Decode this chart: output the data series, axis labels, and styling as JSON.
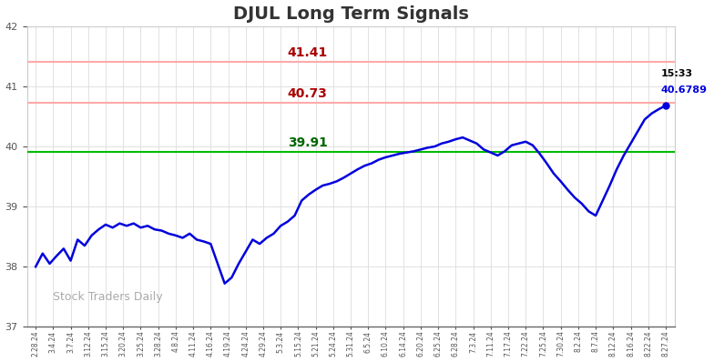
{
  "title": "DJUL Long Term Signals",
  "title_fontsize": 14,
  "title_color": "#333333",
  "background_color": "#ffffff",
  "line_color": "#0000dd",
  "line_width": 1.8,
  "hline_green_value": 39.91,
  "hline_green_color": "#00bb00",
  "hline_red1_value": 40.73,
  "hline_red1_color": "#ffaaaa",
  "hline_red2_value": 41.41,
  "hline_red2_color": "#ffaaaa",
  "label_41_41": "41.41",
  "label_40_73": "40.73",
  "label_39_91": "39.91",
  "label_red_color": "#aa0000",
  "label_green_color": "#006600",
  "annotation_time": "15:33",
  "annotation_price": "40.6789",
  "annotation_time_color": "#000000",
  "annotation_price_color": "#0000dd",
  "watermark": "Stock Traders Daily",
  "watermark_color": "#aaaaaa",
  "ylim_min": 37,
  "ylim_max": 42,
  "yticks": [
    37,
    38,
    39,
    40,
    41,
    42
  ],
  "x_labels": [
    "2.28.24",
    "3.4.24",
    "3.7.24",
    "3.12.24",
    "3.15.24",
    "3.20.24",
    "3.25.24",
    "3.28.24",
    "4.8.24",
    "4.11.24",
    "4.16.24",
    "4.19.24",
    "4.24.24",
    "4.29.24",
    "5.3.24",
    "5.15.24",
    "5.21.24",
    "5.24.24",
    "5.31.24",
    "6.5.24",
    "6.10.24",
    "6.14.24",
    "6.20.24",
    "6.25.24",
    "6.28.24",
    "7.3.24",
    "7.11.24",
    "7.17.24",
    "7.22.24",
    "7.25.24",
    "7.30.24",
    "8.2.24",
    "8.7.24",
    "8.12.24",
    "8.16.24",
    "8.22.24",
    "8.27.24"
  ],
  "prices": [
    38.0,
    38.22,
    38.05,
    38.18,
    38.3,
    38.1,
    38.45,
    38.35,
    38.52,
    38.62,
    38.7,
    38.65,
    38.72,
    38.68,
    38.72,
    38.65,
    38.68,
    38.62,
    38.6,
    38.55,
    38.52,
    38.48,
    38.55,
    38.45,
    38.42,
    38.38,
    38.05,
    37.72,
    37.82,
    38.05,
    38.25,
    38.45,
    38.38,
    38.48,
    38.55,
    38.68,
    38.75,
    38.85,
    39.1,
    39.2,
    39.28,
    39.35,
    39.38,
    39.42,
    39.48,
    39.55,
    39.62,
    39.68,
    39.72,
    39.78,
    39.82,
    39.85,
    39.88,
    39.9,
    39.92,
    39.95,
    39.98,
    40.0,
    40.05,
    40.08,
    40.12,
    40.15,
    40.1,
    40.05,
    39.95,
    39.9,
    39.85,
    39.92,
    40.02,
    40.05,
    40.08,
    40.02,
    39.88,
    39.72,
    39.55,
    39.42,
    39.28,
    39.15,
    39.05,
    38.92,
    38.85,
    39.1,
    39.35,
    39.62,
    39.85,
    40.05,
    40.25,
    40.45,
    40.55,
    40.62,
    40.68
  ]
}
